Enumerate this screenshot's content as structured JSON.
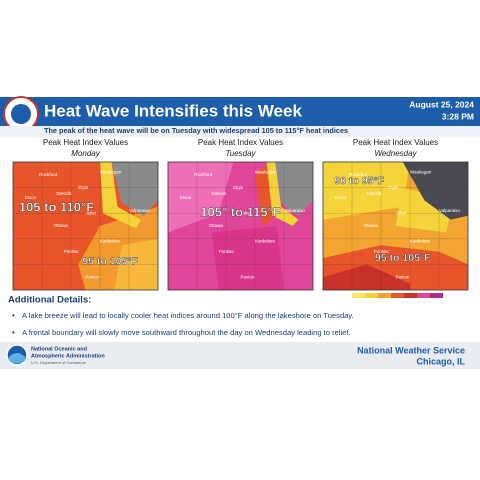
{
  "header": {
    "title": "Heat Wave Intensifies this Week",
    "date": "August 25, 2024",
    "time": "3:28 PM",
    "subtitle": "The peak of the heat wave will be on Tuesday with widespread 105 to 115°F heat indices"
  },
  "panels": [
    {
      "heading": "Peak Heat Index Values",
      "day": "Monday",
      "labels": [
        "105 to 110°F",
        "95 to 105°F"
      ]
    },
    {
      "heading": "Peak Heat Index Values",
      "day": "Tuesday",
      "labels": [
        "105° to 115°F"
      ]
    },
    {
      "heading": "Peak Heat Index Values",
      "day": "Wednesday",
      "labels": [
        "90 to 95°F",
        "95 to 105°F"
      ]
    }
  ],
  "cities": [
    "Rockford",
    "Waukegan",
    "Elgin",
    "DeKalb",
    "Dixon",
    "Joliet",
    "Ottawa",
    "Kankakee",
    "Pontiac",
    "Paxton",
    "Valparaiso"
  ],
  "details": {
    "heading": "Additional Details:",
    "bullets": [
      "A lake breeze will lead to locally cooler heat indices around 100°F along the lakeshore on Tuesday.",
      "A frontal boundary will slowly move southward throughout the day on Wednesday leading to relief."
    ]
  },
  "footer": {
    "agency1": "National Oceanic and",
    "agency2": "Atmospheric Administration",
    "dept": "U.S. Department of Commerce",
    "office": "National Weather Service",
    "location": "Chicago, IL"
  }
}
